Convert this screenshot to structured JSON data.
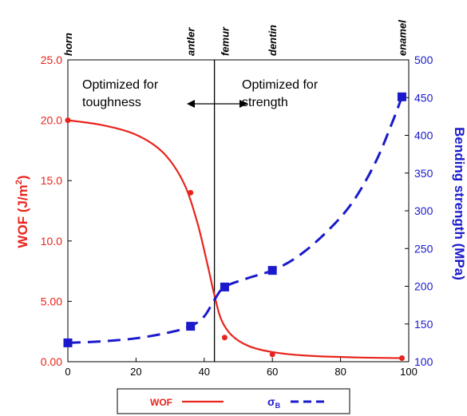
{
  "chart_data": {
    "type": "line",
    "xlim": [
      0,
      100
    ],
    "x_ticks": [
      "0",
      "20",
      "40",
      "60",
      "80",
      "100"
    ],
    "y_left": {
      "label": "WOF (J/m",
      "label_superscript": "2",
      "label_suffix": ")",
      "lim": [
        0,
        25
      ],
      "ticks": [
        "0.00",
        "5.00",
        "10.0",
        "15.0",
        "20.0",
        "25.0"
      ],
      "color": "#e8241c"
    },
    "y_right": {
      "label": "Bending strength (MPa)",
      "lim": [
        100,
        500
      ],
      "ticks": [
        "100",
        "150",
        "200",
        "250",
        "300",
        "350",
        "400",
        "450",
        "500"
      ],
      "color": "#1a1acc"
    },
    "top_labels": [
      {
        "text": "horn",
        "x": 0
      },
      {
        "text": "antler",
        "x": 36
      },
      {
        "text": "femur",
        "x": 46
      },
      {
        "text": "dentin",
        "x": 60
      },
      {
        "text": "enamel",
        "x": 98
      }
    ],
    "divider_x": 43,
    "annotations": {
      "left_line1": "Optimized for",
      "left_line2": "toughness",
      "right_line1": "Optimized for",
      "right_line2": "strength"
    },
    "series": [
      {
        "name": "WOF",
        "axis": "left",
        "color": "#e8241c",
        "style": "solid",
        "marker": "circle",
        "points": [
          [
            0,
            20.0
          ],
          [
            36,
            14.0
          ],
          [
            46,
            2.0
          ],
          [
            60,
            0.6
          ],
          [
            98,
            0.3
          ]
        ],
        "curve": [
          [
            0,
            20.0
          ],
          [
            10,
            19.6
          ],
          [
            20,
            18.8
          ],
          [
            28,
            17.3
          ],
          [
            34,
            14.8
          ],
          [
            38,
            11.5
          ],
          [
            41,
            8.0
          ],
          [
            43,
            5.5
          ],
          [
            45,
            3.5
          ],
          [
            48,
            2.2
          ],
          [
            53,
            1.3
          ],
          [
            60,
            0.8
          ],
          [
            70,
            0.5
          ],
          [
            85,
            0.35
          ],
          [
            98,
            0.3
          ]
        ]
      },
      {
        "name": "σB",
        "name_base": "σ",
        "name_sub": "B",
        "axis": "right",
        "color": "#1a1acc",
        "style": "dashed",
        "marker": "square",
        "points": [
          [
            0,
            125
          ],
          [
            36,
            147
          ],
          [
            46,
            199
          ],
          [
            60,
            221
          ],
          [
            98,
            451
          ]
        ],
        "curve": [
          [
            0,
            125
          ],
          [
            10,
            127
          ],
          [
            20,
            131
          ],
          [
            30,
            139
          ],
          [
            36,
            147
          ],
          [
            40,
            160
          ],
          [
            43,
            182
          ],
          [
            46,
            199
          ],
          [
            53,
            211
          ],
          [
            60,
            221
          ],
          [
            67,
            238
          ],
          [
            75,
            268
          ],
          [
            83,
            308
          ],
          [
            90,
            362
          ],
          [
            95,
            415
          ],
          [
            98,
            451
          ]
        ]
      }
    ],
    "legend": {
      "position": "bottom",
      "wof_label": "WOF",
      "sigma_label": "σ",
      "sigma_sub": "B"
    }
  }
}
